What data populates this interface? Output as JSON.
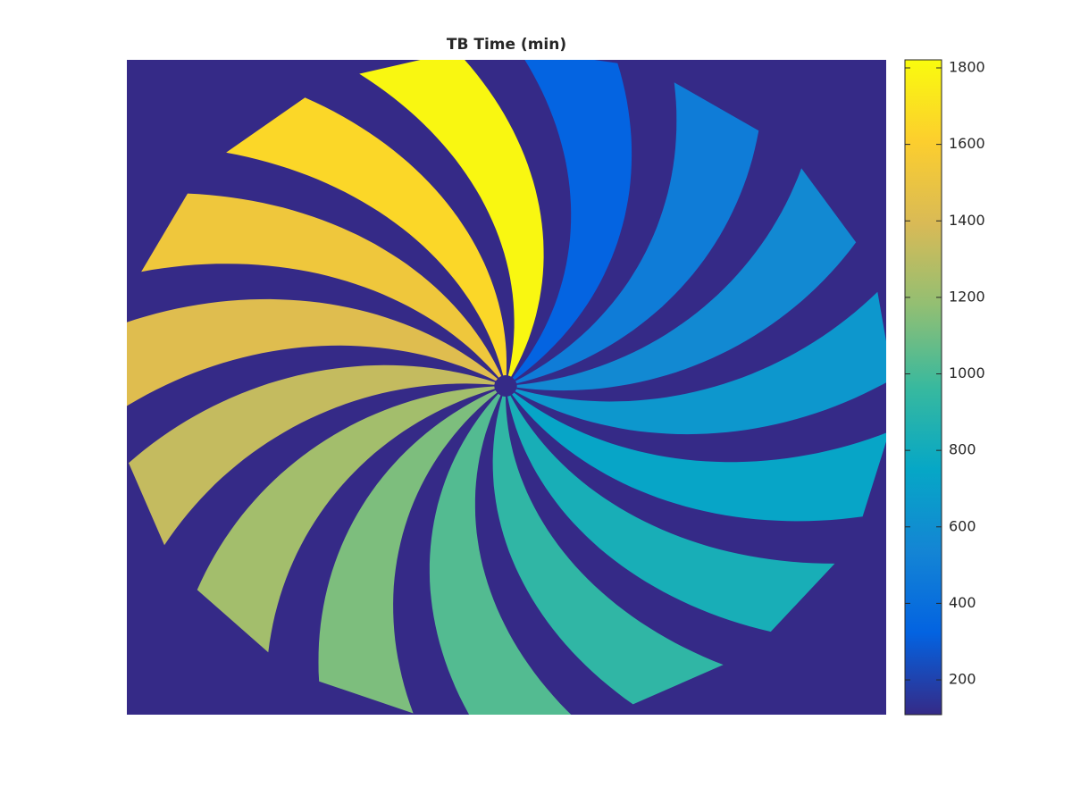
{
  "chart_data": {
    "type": "image",
    "title": "TB Time (min)",
    "values": [
      330,
      480,
      560,
      650,
      740,
      830,
      930,
      1030,
      1130,
      1230,
      1330,
      1430,
      1530,
      1650,
      1800
    ],
    "background": "#352a87",
    "colormap": [
      "#352a87",
      "#0363e1",
      "#1485d4",
      "#06a7c6",
      "#38b99e",
      "#92bf73",
      "#d9ba56",
      "#fcce2e",
      "#f9fb0e"
    ],
    "clim": [
      109,
      1821
    ],
    "cticks": [
      200,
      400,
      600,
      800,
      1000,
      1200,
      1400,
      1600,
      1800
    ]
  }
}
